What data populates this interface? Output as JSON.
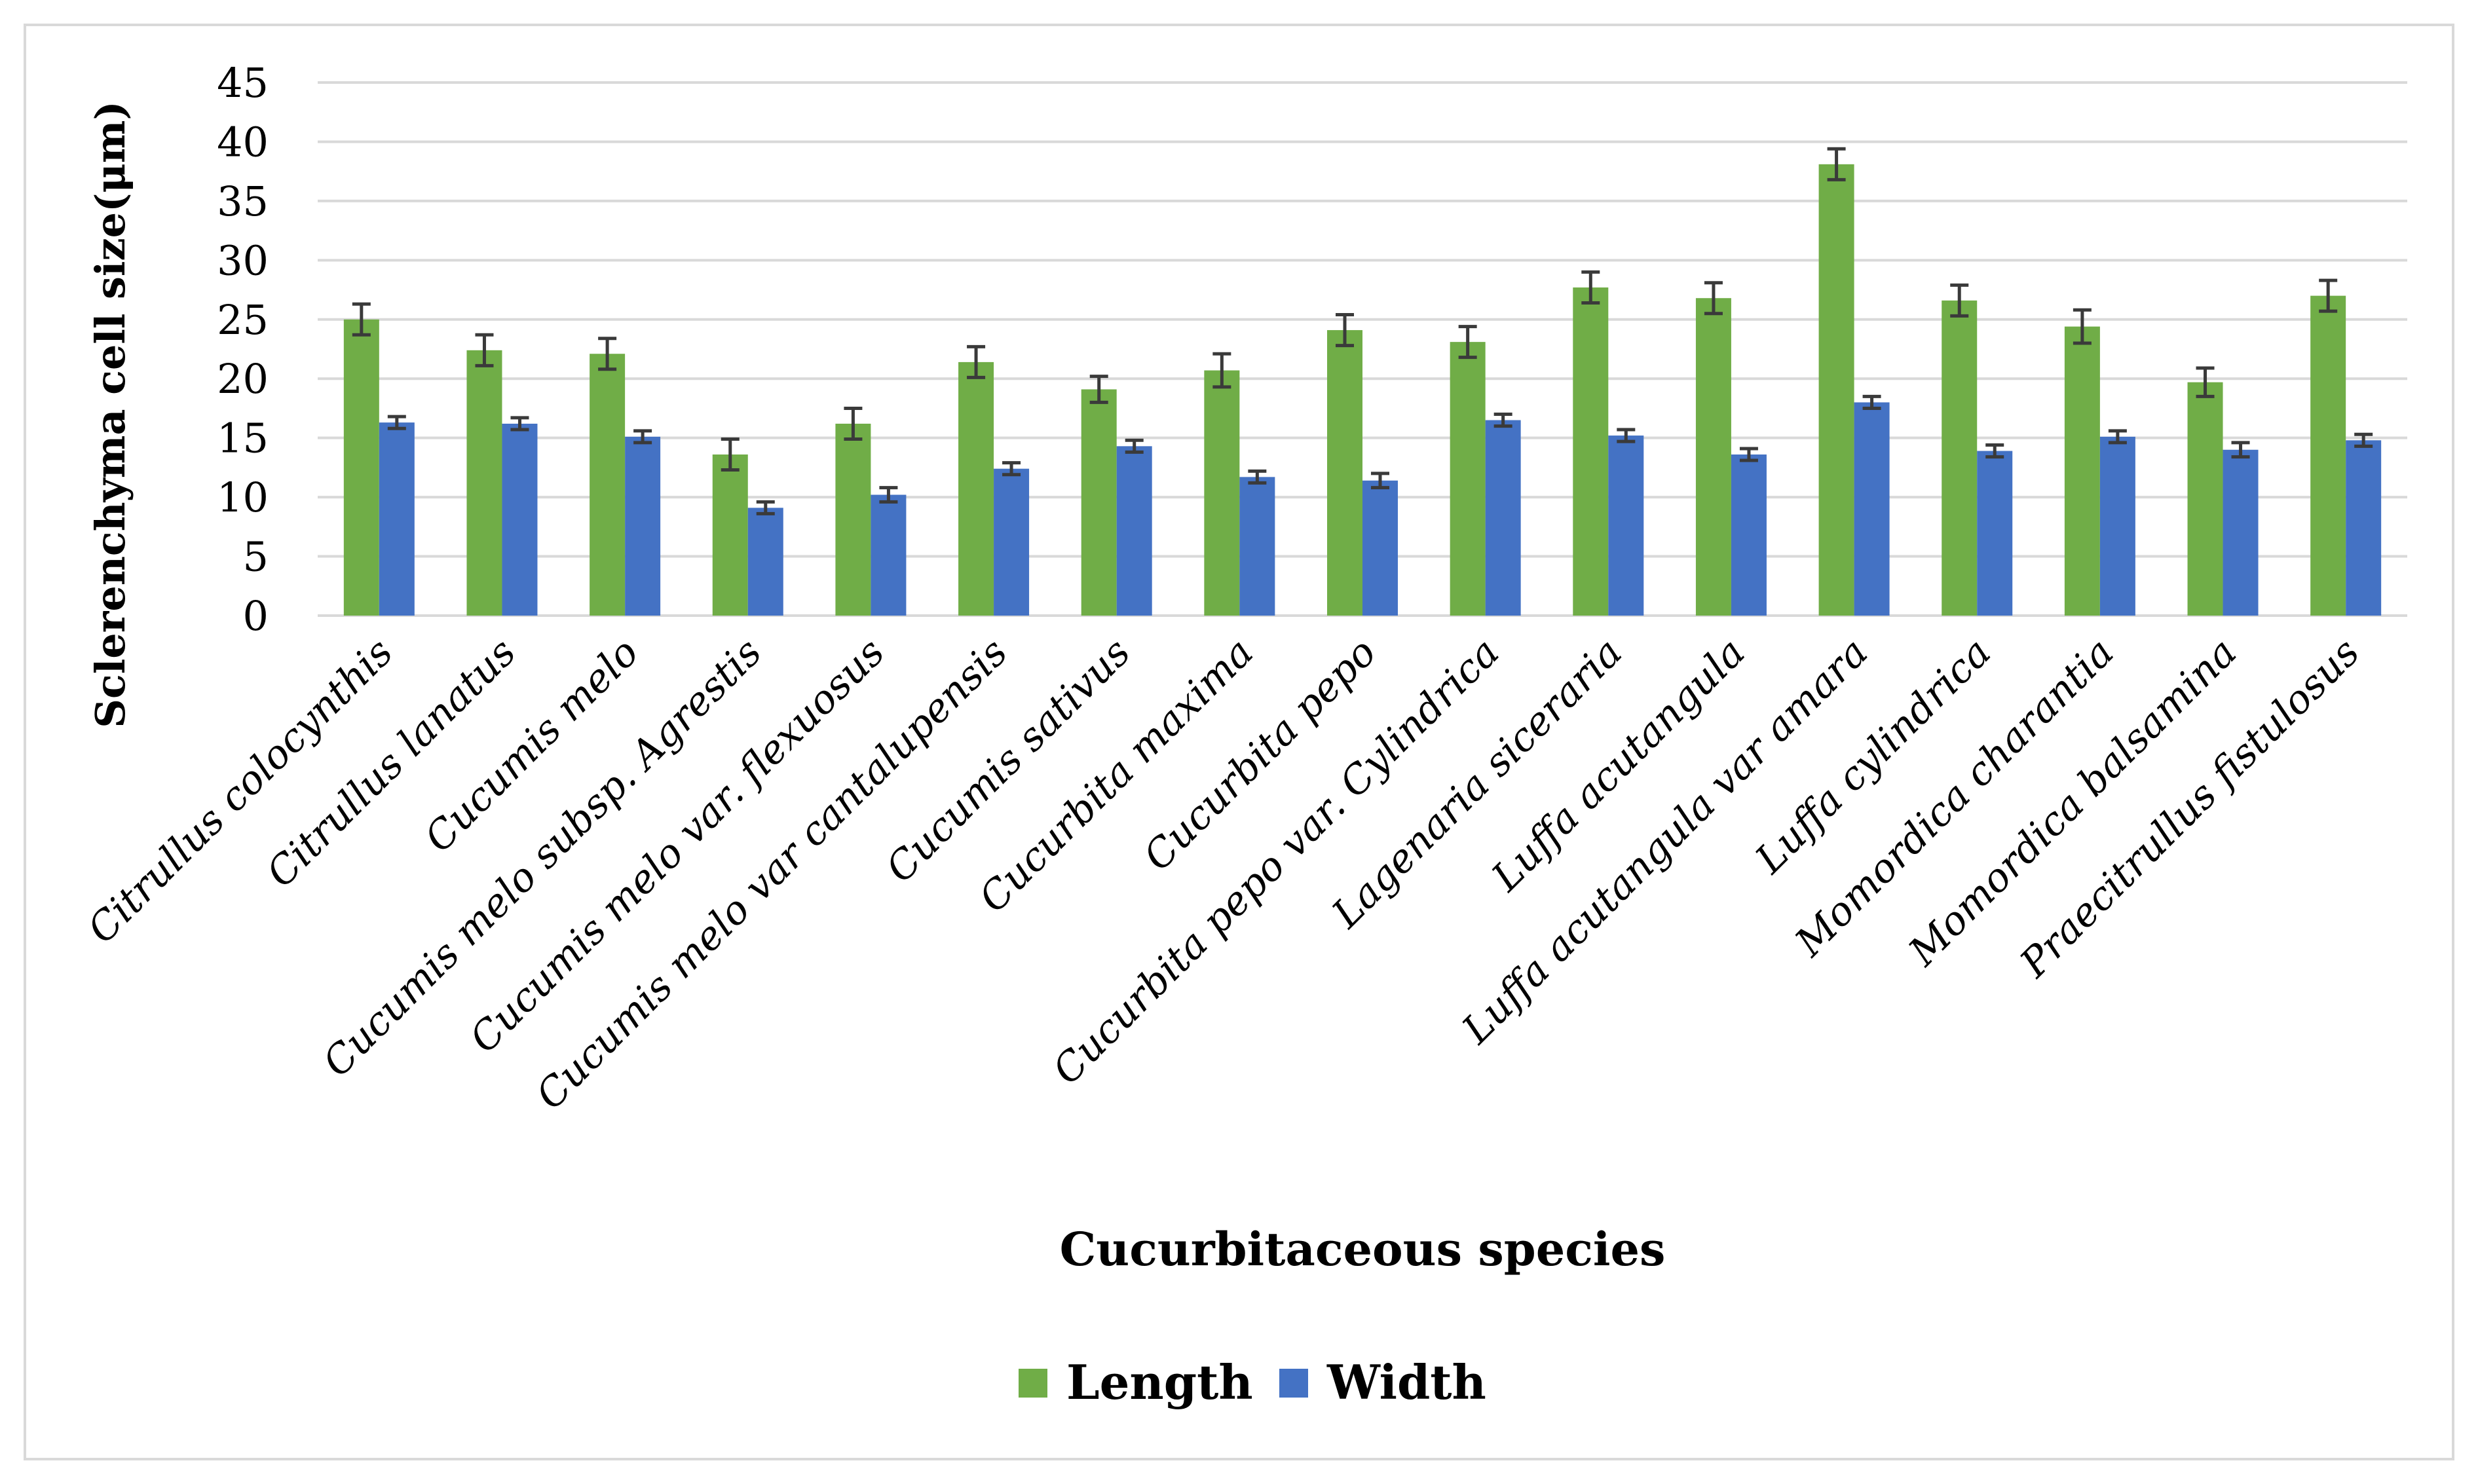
{
  "chart_data": {
    "type": "bar",
    "title": "",
    "xlabel": "Cucurbitaceous species",
    "ylabel": "Sclerenchyma cell size(μm)",
    "ylim": [
      0,
      45
    ],
    "yticks": [
      0,
      5,
      10,
      15,
      20,
      25,
      30,
      35,
      40,
      45
    ],
    "grid": true,
    "legend_position": "bottom",
    "categories": [
      "Citrullus colocynthis",
      "Citrullus lanatus",
      "Cucumis melo",
      "Cucumis melo subsp. Agrestis",
      "Cucumis melo var. flexuosus",
      "Cucumis melo var cantalupensis",
      "Cucumis sativus",
      "Cucurbita maxima",
      "Cucurbita pepo",
      "Cucurbita pepo var. Cylindrica",
      "Lagenaria siceraria",
      "Luffa acutangula",
      "Luffa acutangula var amara",
      "Luffa cylindrica",
      "Momordica charantia",
      "Momordica balsamina",
      "Praecitrullus fistulosus"
    ],
    "series": [
      {
        "name": "Length",
        "color": "#70ad47",
        "values": [
          25.0,
          22.4,
          22.1,
          13.6,
          16.2,
          21.4,
          19.1,
          20.7,
          24.1,
          23.1,
          27.7,
          26.8,
          38.1,
          26.6,
          24.4,
          19.7,
          27.0
        ],
        "errors": [
          1.3,
          1.3,
          1.3,
          1.3,
          1.3,
          1.3,
          1.1,
          1.4,
          1.3,
          1.3,
          1.3,
          1.3,
          1.3,
          1.3,
          1.4,
          1.2,
          1.3
        ]
      },
      {
        "name": "Width",
        "color": "#4472c4",
        "values": [
          16.3,
          16.2,
          15.1,
          9.1,
          10.2,
          12.4,
          14.3,
          11.7,
          11.4,
          16.5,
          15.2,
          13.6,
          18.0,
          13.9,
          15.1,
          14.0,
          14.8
        ],
        "errors": [
          0.5,
          0.5,
          0.5,
          0.5,
          0.6,
          0.5,
          0.5,
          0.5,
          0.6,
          0.5,
          0.5,
          0.5,
          0.5,
          0.5,
          0.5,
          0.6,
          0.5
        ]
      }
    ]
  }
}
